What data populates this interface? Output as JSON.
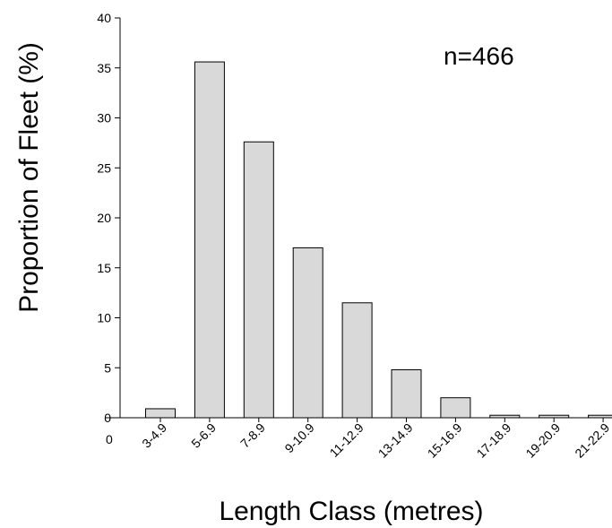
{
  "chart_data": {
    "type": "bar",
    "title": "",
    "xlabel": "Length Class (metres)",
    "ylabel": "Proportion of Fleet (%)",
    "annotation": "n=466",
    "origin_label": "0",
    "categories": [
      "3-4.9",
      "5-6.9",
      "7-8.9",
      "9-10.9",
      "11-12.9",
      "13-14.9",
      "15-16.9",
      "17-18.9",
      "19-20.9",
      "21-22.9"
    ],
    "values": [
      0.9,
      35.6,
      27.6,
      17.0,
      11.5,
      4.8,
      2.0,
      0.25,
      0.25,
      0.25
    ],
    "ylim": [
      0,
      40
    ],
    "yticks": [
      0,
      5,
      10,
      15,
      20,
      25,
      30,
      35,
      40
    ],
    "ytick_labels": [
      "0",
      "5",
      "10",
      "15",
      "20",
      "25",
      "30",
      "35",
      "40"
    ],
    "grid": false,
    "bar_color": "#d9d9d9"
  }
}
